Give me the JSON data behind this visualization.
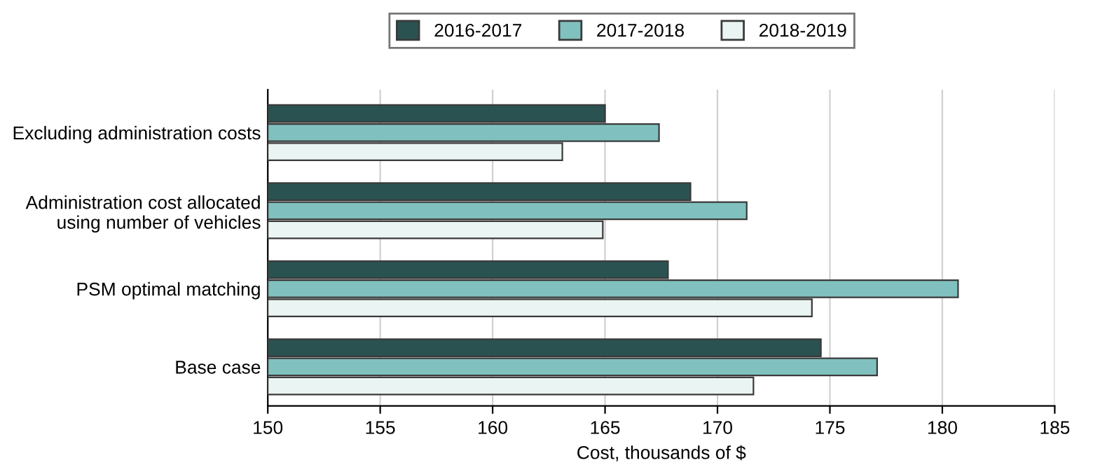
{
  "chart_data": {
    "type": "bar",
    "orientation": "horizontal",
    "xlabel": "Cost, thousands of $",
    "categories": [
      "Excluding administration costs",
      "Administration cost allocated\nusing number of vehicles",
      "PSM optimal matching",
      "Base case"
    ],
    "series": [
      {
        "name": "2016-2017",
        "color": "#2a5250",
        "values": [
          165.0,
          168.8,
          167.8,
          174.6
        ]
      },
      {
        "name": "2017-2018",
        "color": "#80c1bf",
        "values": [
          167.4,
          171.3,
          180.7,
          177.1
        ]
      },
      {
        "name": "2018-2019",
        "color": "#eaf4f3",
        "values": [
          163.1,
          164.9,
          174.2,
          171.6
        ]
      }
    ],
    "xlim": [
      150,
      185
    ],
    "xticks": [
      150,
      155,
      160,
      165,
      170,
      175,
      180,
      185
    ],
    "grid": "x",
    "legend": "top"
  }
}
